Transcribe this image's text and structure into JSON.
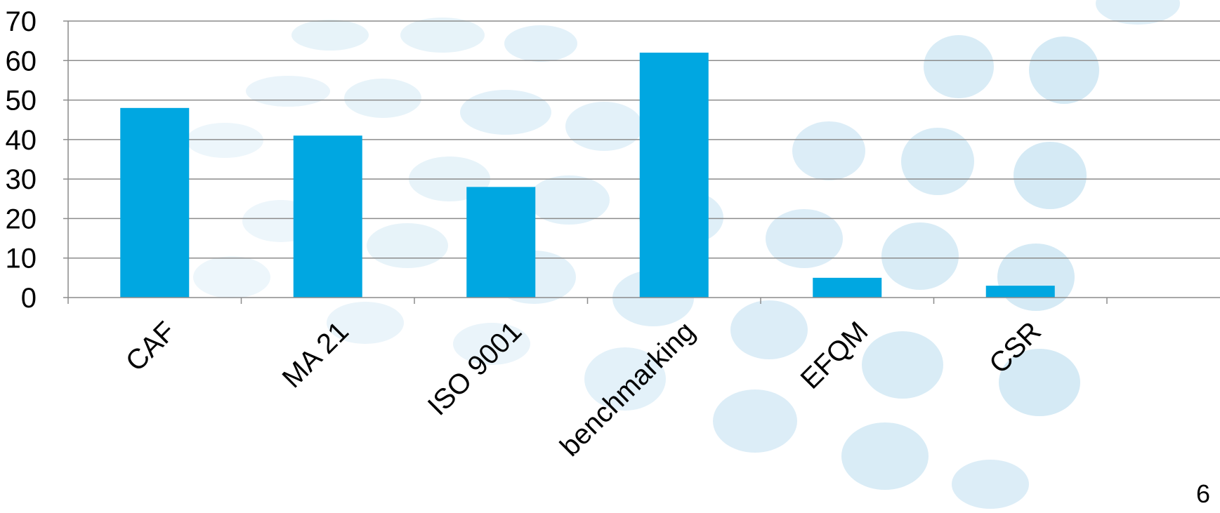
{
  "chart_data": {
    "type": "bar",
    "categories": [
      "CAF",
      "MA 21",
      "ISO 9001",
      "benchmarking",
      "EFQM",
      "CSR"
    ],
    "values": [
      48,
      41,
      28,
      62,
      5,
      3
    ],
    "title": "",
    "xlabel": "",
    "ylabel": "",
    "ylim": [
      0,
      70
    ],
    "yticks": [
      0,
      10,
      20,
      30,
      40,
      50,
      60,
      70
    ],
    "grid": true,
    "bar_color": "#00a7e1"
  },
  "page": {
    "number": "6"
  },
  "background": {
    "dot_color": "#b9dcef"
  }
}
